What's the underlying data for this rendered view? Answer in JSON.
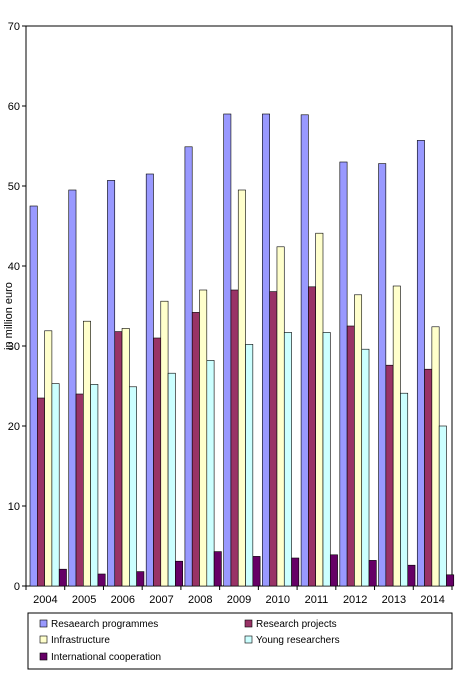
{
  "chart_data": {
    "type": "bar",
    "title": "",
    "xlabel": "",
    "ylabel": "in million euro",
    "ylim": [
      0,
      70
    ],
    "yticks": [
      0,
      10,
      20,
      30,
      40,
      50,
      60,
      70
    ],
    "grid": false,
    "legend_position": "bottom",
    "categories": [
      "2004",
      "2005",
      "2006",
      "2007",
      "2008",
      "2009",
      "2010",
      "2011",
      "2012",
      "2013",
      "2014"
    ],
    "series": [
      {
        "name": "Resaearch programmes",
        "color": "#9999FF",
        "values": [
          47.5,
          49.5,
          50.7,
          51.5,
          54.9,
          59.0,
          59.0,
          58.9,
          53.0,
          52.8,
          55.7
        ]
      },
      {
        "name": "Research projects",
        "color": "#993366",
        "values": [
          23.5,
          24.0,
          31.8,
          31.0,
          34.2,
          37.0,
          36.8,
          37.4,
          32.5,
          27.6,
          27.1
        ]
      },
      {
        "name": "Infrastructure",
        "color": "#FFFFCC",
        "values": [
          31.9,
          33.1,
          32.2,
          35.6,
          37.0,
          49.5,
          42.4,
          44.1,
          36.4,
          37.5,
          32.4
        ]
      },
      {
        "name": "Young researchers",
        "color": "#CCFFFF",
        "values": [
          25.3,
          25.2,
          24.9,
          26.6,
          28.2,
          30.2,
          31.7,
          31.7,
          29.6,
          24.1,
          20.0
        ]
      },
      {
        "name": "International cooperation",
        "color": "#660066",
        "values": [
          2.1,
          1.5,
          1.8,
          3.1,
          4.3,
          3.7,
          3.5,
          3.9,
          3.2,
          2.6,
          1.4
        ]
      }
    ]
  }
}
